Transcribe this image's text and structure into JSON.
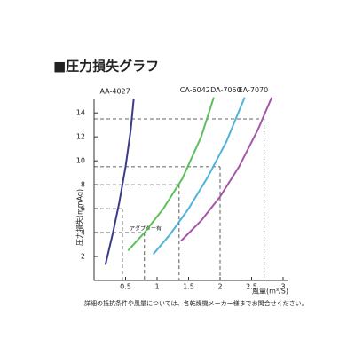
{
  "chart_data": {
    "type": "line",
    "title": "■圧力損失グラフ",
    "ylabel": "圧力損失(mmAq)",
    "xlabel": "風量(m³/S)",
    "annotation": "アダプター有",
    "footnote": "詳細の抵抗条件や風量については、各乾燥機メーカー様までお問合せください。",
    "xlim": [
      0,
      3
    ],
    "ylim": [
      0,
      15.5
    ],
    "xticks": [
      0.5,
      1,
      1.5,
      2,
      2.5,
      3
    ],
    "yticks": [
      2,
      4,
      6,
      8,
      10,
      12,
      14
    ],
    "series": [
      {
        "name": "AA-4027",
        "color": "#3b3a86",
        "x": [
          0.18,
          0.3,
          0.4,
          0.5,
          0.58,
          0.63
        ],
        "values": [
          1.3,
          4,
          6.5,
          9.5,
          12.5,
          15.2
        ]
      },
      {
        "name": "CA-6042",
        "color": "#5bbf5a",
        "x": [
          0.54,
          0.8,
          1.1,
          1.4,
          1.7,
          1.9
        ],
        "values": [
          2.5,
          4,
          6,
          8.5,
          12,
          15.3
        ]
      },
      {
        "name": "DA-7050",
        "color": "#4fb3d9",
        "x": [
          0.94,
          1.2,
          1.5,
          1.8,
          2.1,
          2.39
        ],
        "values": [
          2.2,
          3.8,
          6,
          8.6,
          11.6,
          15.3
        ]
      },
      {
        "name": "EA-7070",
        "color": "#a457a8",
        "x": [
          1.38,
          1.7,
          2.0,
          2.3,
          2.6,
          2.82
        ],
        "values": [
          3.3,
          5,
          7,
          9.5,
          12.6,
          15.3
        ]
      }
    ],
    "guides": [
      {
        "x": 0.45,
        "y": 6
      },
      {
        "x": 0.8,
        "y": 4
      },
      {
        "x": 1.35,
        "y": 8
      },
      {
        "x": 2.0,
        "y": 9.5
      },
      {
        "x": 2.7,
        "y": 13.5
      }
    ]
  }
}
